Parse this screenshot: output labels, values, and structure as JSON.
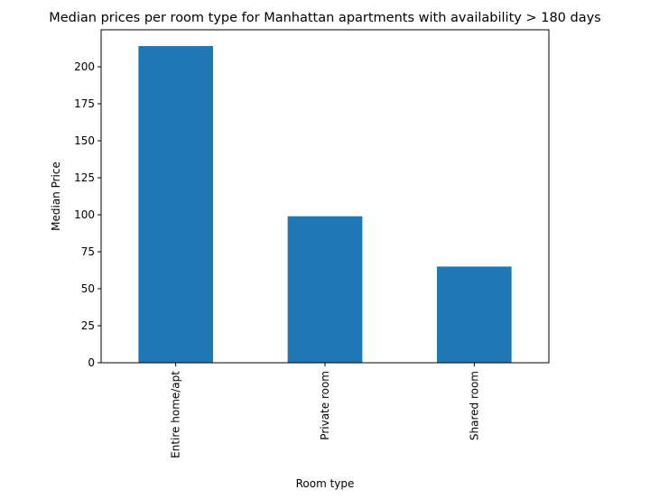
{
  "chart_data": {
    "type": "bar",
    "title": "Median prices per room type for Manhattan apartments with availability > 180 days",
    "xlabel": "Room type",
    "ylabel": "Median Price",
    "categories": [
      "Entire home/apt",
      "Private room",
      "Shared room"
    ],
    "values": [
      214,
      99,
      65
    ],
    "ylim": [
      0,
      225
    ],
    "yticks": [
      0,
      25,
      50,
      75,
      100,
      125,
      150,
      175,
      200
    ],
    "bar_color": "#1f77b4",
    "grid": false,
    "legend": "none"
  }
}
